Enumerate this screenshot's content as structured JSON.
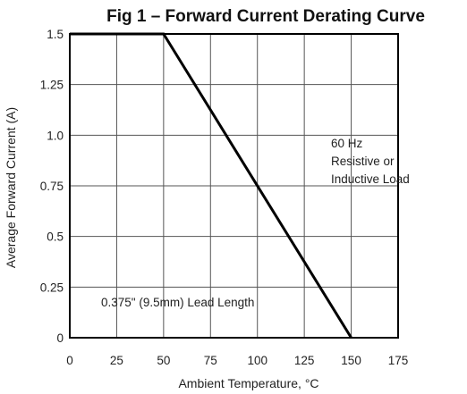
{
  "chart_data": {
    "type": "line",
    "title": "Fig 1 – Forward Current Derating Curve",
    "xlabel": "Ambient Temperature, °C",
    "ylabel": "Average Forward Current (A)",
    "xlim": [
      0,
      175
    ],
    "ylim": [
      0,
      1.5
    ],
    "x_ticks": [
      "0",
      "25",
      "50",
      "75",
      "100",
      "125",
      "150",
      "175"
    ],
    "y_ticks": [
      "0",
      "0.25",
      "0.5",
      "0.75",
      "1.0",
      "1.25",
      "1.5"
    ],
    "grid": true,
    "series": [
      {
        "x": [
          0,
          50,
          150
        ],
        "y": [
          1.5,
          1.5,
          0
        ]
      }
    ],
    "annotations": [
      {
        "lines": [
          "60 Hz",
          "Resistive or",
          "Inductive Load"
        ]
      },
      {
        "lines": [
          "0.375\" (9.5mm) Lead Length"
        ]
      }
    ],
    "colors": {
      "line": "#000000",
      "grid": "#555555",
      "frame": "#000000"
    }
  }
}
